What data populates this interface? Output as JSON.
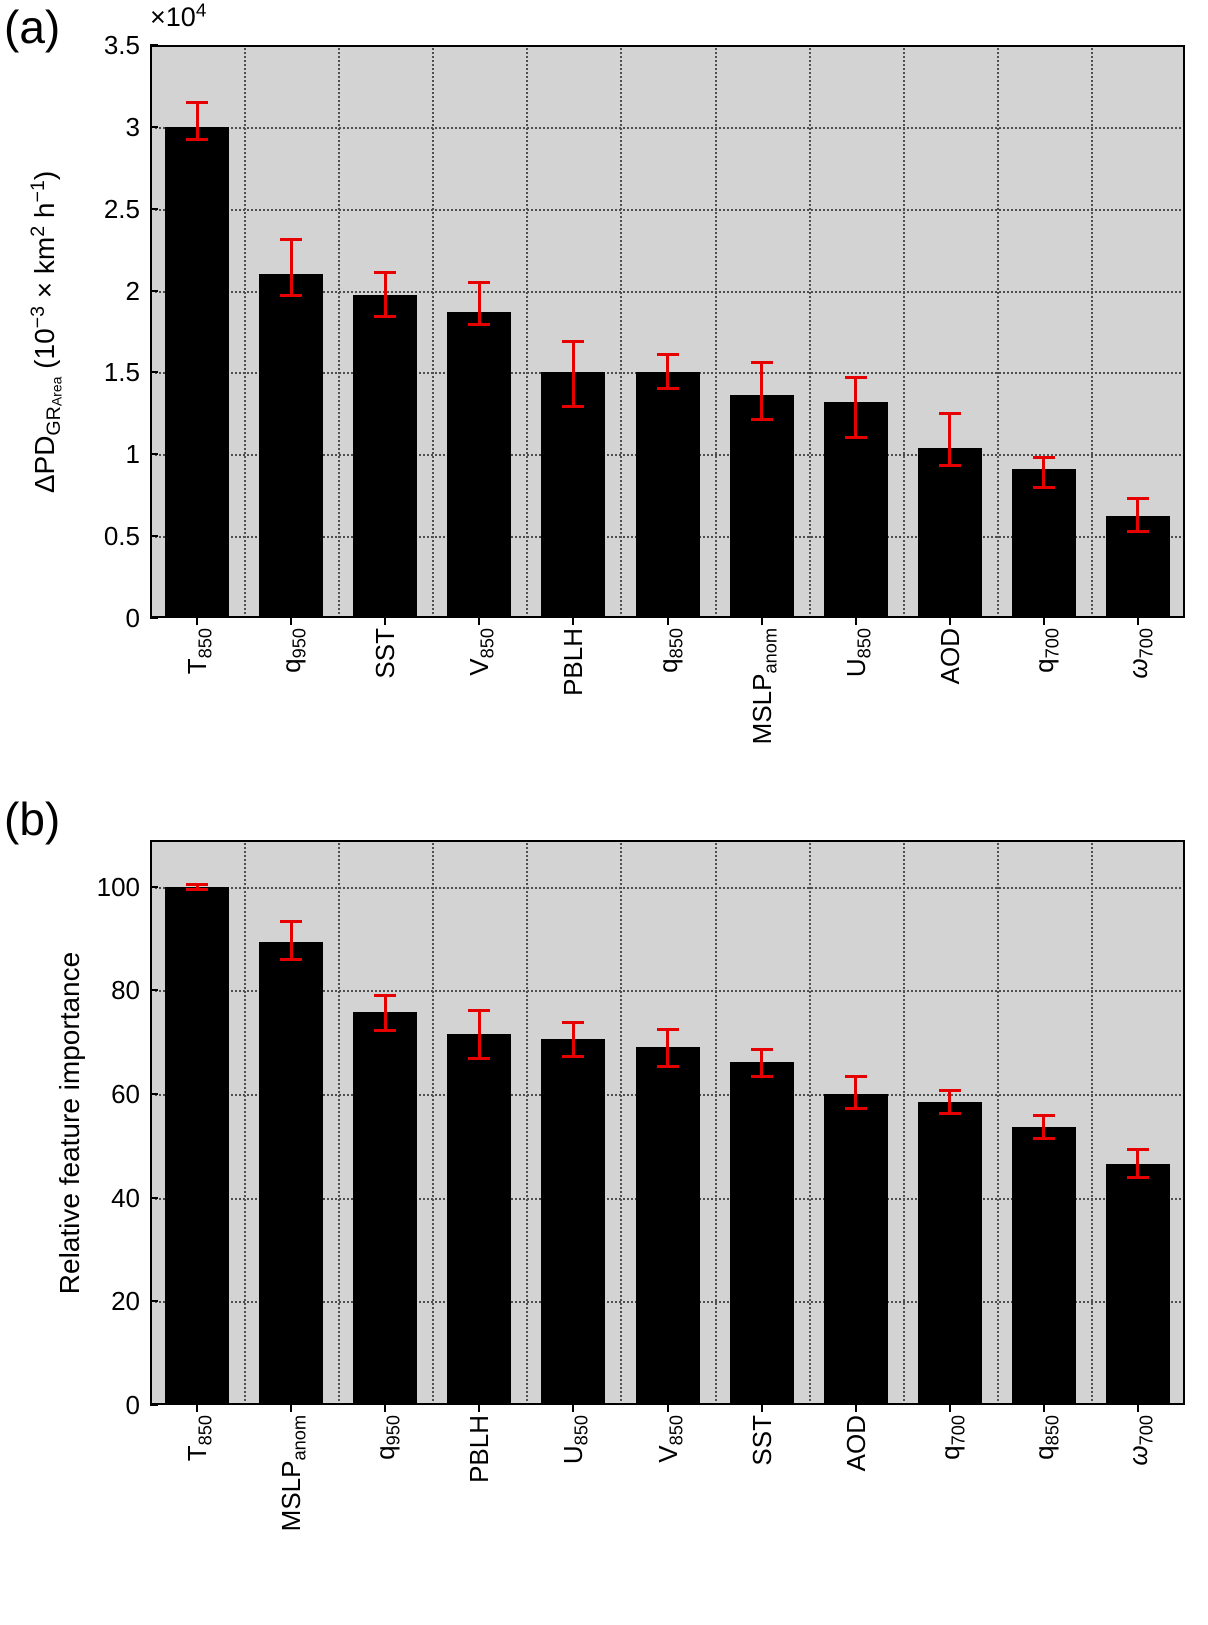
{
  "colors": {
    "bar": "#000000",
    "error": "#e60000",
    "plot_bg": "#d3d3d3",
    "grid": "#4f4f4f",
    "axis": "#000000"
  },
  "chart_data": [
    {
      "type": "bar",
      "panel_label": "(a)",
      "ylabel_plain": "ΔPD_GR_Area (10^-3 × km^2 h^-1)",
      "ylabel_segments": [
        {
          "t": "ΔPD"
        },
        {
          "s": "GR"
        },
        {
          "s2": "Area"
        },
        {
          "t": " (10"
        },
        {
          "p": "−3"
        },
        {
          "t": " × km"
        },
        {
          "p": "2"
        },
        {
          "t": " h"
        },
        {
          "p": "−1"
        },
        {
          "t": ")"
        }
      ],
      "offset_label_plain": "×10^4",
      "offset_label_segments": [
        {
          "t": "×10"
        },
        {
          "p": "4"
        }
      ],
      "ylim": [
        0,
        3.5
      ],
      "grid": "dotted",
      "legend": "none",
      "yticks": [
        {
          "v": 0,
          "label": "0"
        },
        {
          "v": 0.5,
          "label": "0.5"
        },
        {
          "v": 1,
          "label": "1"
        },
        {
          "v": 1.5,
          "label": "1.5"
        },
        {
          "v": 2,
          "label": "2"
        },
        {
          "v": 2.5,
          "label": "2.5"
        },
        {
          "v": 3,
          "label": "3"
        },
        {
          "v": 3.5,
          "label": "3.5"
        }
      ],
      "categories_plain": [
        "T_850",
        "q_950",
        "SST",
        "V_850",
        "PBLH",
        "q_850",
        "MSLP_anom",
        "U_850",
        "AOD",
        "q_700",
        "ω_700"
      ],
      "categories": [
        [
          {
            "t": "T"
          },
          {
            "s": "850"
          }
        ],
        [
          {
            "t": "q"
          },
          {
            "s": "950"
          }
        ],
        [
          {
            "t": "SST"
          }
        ],
        [
          {
            "t": "V"
          },
          {
            "s": "850"
          }
        ],
        [
          {
            "t": "PBLH"
          }
        ],
        [
          {
            "t": "q"
          },
          {
            "s": "850"
          }
        ],
        [
          {
            "t": "MSLP"
          },
          {
            "s": "anom"
          }
        ],
        [
          {
            "t": "U"
          },
          {
            "s": "850"
          }
        ],
        [
          {
            "t": "AOD"
          }
        ],
        [
          {
            "t": "q"
          },
          {
            "s": "700"
          }
        ],
        [
          {
            "t": "ω",
            "i": true
          },
          {
            "s": "700"
          }
        ]
      ],
      "values": [
        3.0,
        2.1,
        1.97,
        1.87,
        1.5,
        1.5,
        1.36,
        1.32,
        1.04,
        0.91,
        0.62
      ],
      "err_low": [
        2.92,
        1.97,
        1.84,
        1.79,
        1.29,
        1.4,
        1.21,
        1.1,
        0.93,
        0.8,
        0.53
      ],
      "err_high": [
        3.15,
        2.31,
        2.11,
        2.05,
        1.69,
        1.61,
        1.56,
        1.47,
        1.25,
        0.98,
        0.73
      ]
    },
    {
      "type": "bar",
      "panel_label": "(b)",
      "ylabel_plain": "Relative feature importance",
      "ylabel_segments": [
        {
          "t": "Relative feature importance"
        }
      ],
      "ylim": [
        0,
        109
      ],
      "grid": "dotted",
      "legend": "none",
      "yticks": [
        {
          "v": 0,
          "label": "0"
        },
        {
          "v": 20,
          "label": "20"
        },
        {
          "v": 40,
          "label": "40"
        },
        {
          "v": 60,
          "label": "60"
        },
        {
          "v": 80,
          "label": "80"
        },
        {
          "v": 100,
          "label": "100"
        }
      ],
      "categories_plain": [
        "T_850",
        "MSLP_anom",
        "q_950",
        "PBLH",
        "U_850",
        "V_850",
        "SST",
        "AOD",
        "q_700",
        "q_850",
        "ω_700"
      ],
      "categories": [
        [
          {
            "t": "T"
          },
          {
            "s": "850"
          }
        ],
        [
          {
            "t": "MSLP"
          },
          {
            "s": "anom"
          }
        ],
        [
          {
            "t": "q"
          },
          {
            "s": "950"
          }
        ],
        [
          {
            "t": "PBLH"
          }
        ],
        [
          {
            "t": "U"
          },
          {
            "s": "850"
          }
        ],
        [
          {
            "t": "V"
          },
          {
            "s": "850"
          }
        ],
        [
          {
            "t": "SST"
          }
        ],
        [
          {
            "t": "AOD"
          }
        ],
        [
          {
            "t": "q"
          },
          {
            "s": "700"
          }
        ],
        [
          {
            "t": "q"
          },
          {
            "s": "850"
          }
        ],
        [
          {
            "t": "ω",
            "i": true
          },
          {
            "s": "700"
          }
        ]
      ],
      "values": [
        100.0,
        89.3,
        75.8,
        71.6,
        70.6,
        69.1,
        66.2,
        60.0,
        58.4,
        53.6,
        46.4
      ],
      "err_low": [
        99.5,
        86.0,
        72.2,
        66.8,
        67.3,
        65.3,
        63.4,
        57.2,
        56.3,
        51.5,
        43.8
      ],
      "err_high": [
        100.4,
        93.3,
        79.0,
        76.1,
        73.8,
        72.4,
        68.6,
        63.4,
        60.6,
        55.8,
        49.3
      ]
    }
  ]
}
